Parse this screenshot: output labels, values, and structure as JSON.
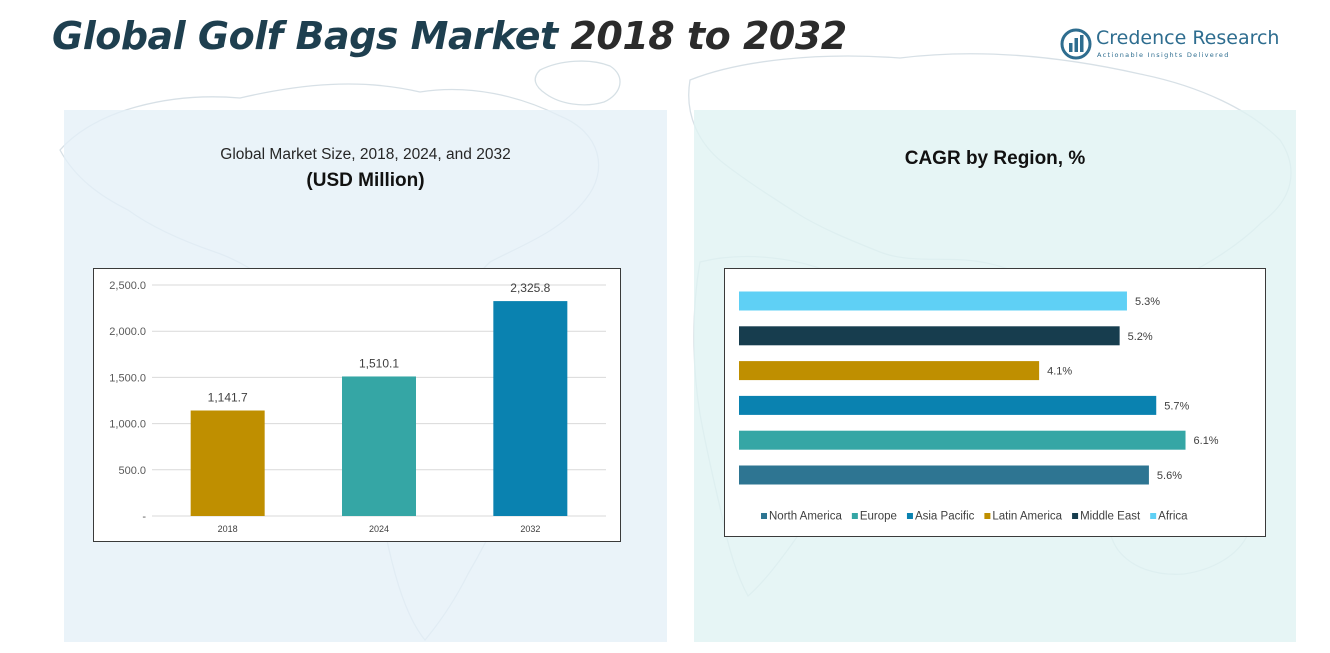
{
  "header": {
    "title_accent": "Global Golf Bags Market",
    "title_rest": " 2018 to 2032"
  },
  "logo": {
    "name": "Credence Research",
    "tagline": "Actionable Insights Delivered",
    "icon": "bar-chart-circle-logo",
    "color": "#2e6d8f"
  },
  "left_panel": {
    "subtitle": "Global Market Size, 2018, 2024, and 2032",
    "unit": "(USD Million)"
  },
  "right_panel": {
    "title": "CAGR by Region, %"
  },
  "chart_data": [
    {
      "type": "bar",
      "title": "Global Market Size, 2018, 2024, and 2032",
      "subtitle": "(USD Million)",
      "categories": [
        "2018",
        "2024",
        "2032"
      ],
      "values": [
        1141.7,
        1510.1,
        2325.8
      ],
      "data_labels": [
        "1,141.7",
        "1,510.1",
        "2,325.8"
      ],
      "colors": [
        "#bf8f00",
        "#35a6a5",
        "#0a82b0"
      ],
      "ylim": [
        0,
        2500
      ],
      "yticks": [
        0,
        500,
        1000,
        1500,
        2000,
        2500
      ],
      "ytick_labels": [
        "-",
        "500.0",
        "1,000.0",
        "1,500.0",
        "2,000.0",
        "2,500.0"
      ],
      "grid": true,
      "xlabel": "",
      "ylabel": ""
    },
    {
      "type": "bar",
      "orientation": "horizontal",
      "title": "CAGR by Region, %",
      "series": [
        {
          "name": "Africa",
          "value": 5.3,
          "label": "5.3%",
          "color": "#5fd0f5"
        },
        {
          "name": "Middle East",
          "value": 5.2,
          "label": "5.2%",
          "color": "#173d4e"
        },
        {
          "name": "Latin America",
          "value": 4.1,
          "label": "4.1%",
          "color": "#bf8f00"
        },
        {
          "name": "Asia Pacific",
          "value": 5.7,
          "label": "5.7%",
          "color": "#0a82b0"
        },
        {
          "name": "Europe",
          "value": 6.1,
          "label": "6.1%",
          "color": "#35a6a5"
        },
        {
          "name": "North America",
          "value": 5.6,
          "label": "5.6%",
          "color": "#2e7592"
        }
      ],
      "legend_order": [
        "North America",
        "Europe",
        "Asia Pacific",
        "Latin America",
        "Middle East",
        "Africa"
      ],
      "legend": "bottom",
      "grid": false
    }
  ]
}
